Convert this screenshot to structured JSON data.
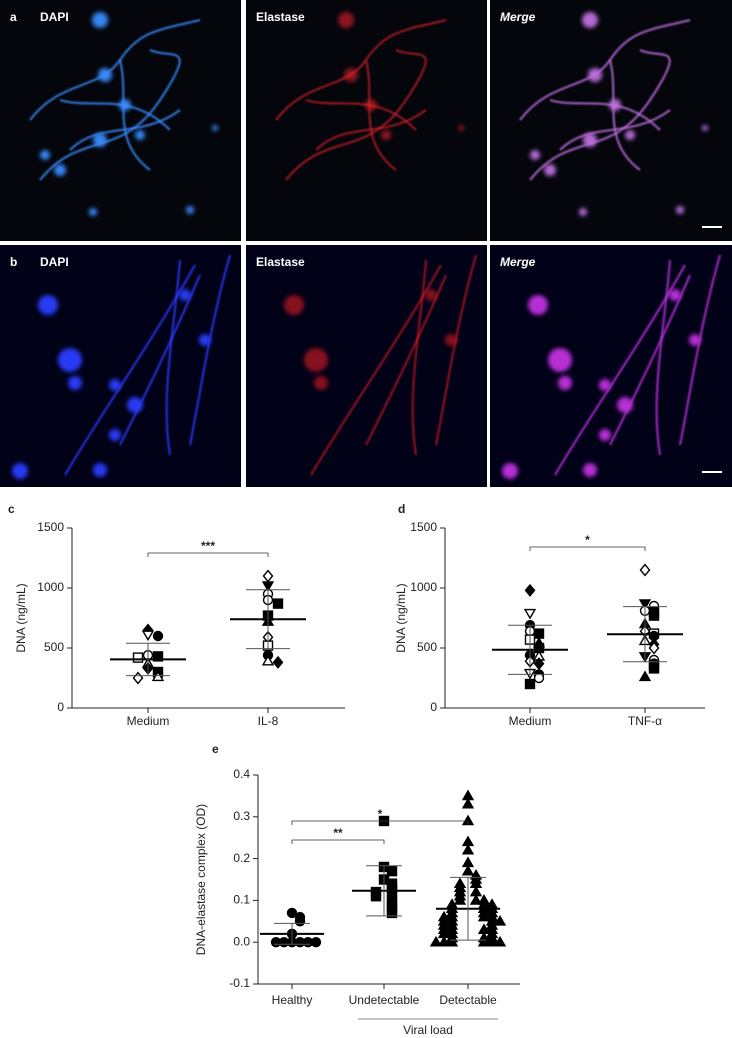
{
  "panels": [
    {
      "label": "a",
      "channels": [
        "DAPI",
        "Elastase",
        "Merge"
      ]
    },
    {
      "label": "b",
      "channels": [
        "DAPI",
        "Elastase",
        "Merge"
      ]
    }
  ],
  "chart_data": [
    {
      "type": "dot",
      "panel_label": "c",
      "y_label": "DNA (ng/mL)",
      "categories": [
        "Medium",
        "IL-8"
      ],
      "values": [
        [
          650,
          610,
          600,
          440,
          430,
          420,
          370,
          330,
          300,
          270,
          260,
          250
        ],
        [
          1100,
          1020,
          950,
          900,
          870,
          770,
          720,
          590,
          520,
          440,
          390,
          380
        ]
      ],
      "means": [
        405,
        740
      ],
      "sd": [
        135,
        245
      ],
      "ylim": [
        0,
        1500
      ],
      "yticks": [
        0,
        500,
        1000,
        1500
      ],
      "significance": [
        "***"
      ]
    },
    {
      "type": "dot",
      "panel_label": "d",
      "y_label": "DNA (ng/mL)",
      "categories": [
        "Medium",
        "TNF-α"
      ],
      "values": [
        [
          980,
          790,
          690,
          640,
          620,
          570,
          540,
          520,
          500,
          440,
          430,
          390,
          370,
          290,
          280,
          250,
          200
        ],
        [
          1150,
          870,
          850,
          810,
          800,
          770,
          700,
          640,
          620,
          600,
          560,
          530,
          500,
          430,
          400,
          370,
          360,
          330,
          260
        ]
      ],
      "means": [
        485,
        615
      ],
      "sd": [
        205,
        230
      ],
      "ylim": [
        0,
        1500
      ],
      "yticks": [
        0,
        500,
        1000,
        1500
      ],
      "significance": [
        "*"
      ]
    },
    {
      "type": "dot",
      "panel_label": "e",
      "y_label": "DNA-elastase complex (OD)",
      "categories": [
        "Healthy",
        "Undetectable",
        "Detectable"
      ],
      "x_group_label": "Viral load",
      "values": [
        [
          0.07,
          0.06,
          0.05,
          0.02,
          0.0,
          0.0,
          0.0,
          0.0,
          0.0,
          0.0
        ],
        [
          0.29,
          0.18,
          0.17,
          0.15,
          0.14,
          0.13,
          0.12,
          0.12,
          0.11,
          0.1,
          0.09,
          0.08,
          0.07
        ],
        [
          0.35,
          0.33,
          0.29,
          0.24,
          0.22,
          0.19,
          0.17,
          0.16,
          0.15,
          0.14,
          0.14,
          0.13,
          0.12,
          0.12,
          0.11,
          0.1,
          0.1,
          0.1,
          0.09,
          0.09,
          0.09,
          0.08,
          0.08,
          0.08,
          0.07,
          0.07,
          0.07,
          0.06,
          0.06,
          0.06,
          0.06,
          0.05,
          0.05,
          0.05,
          0.05,
          0.04,
          0.04,
          0.04,
          0.03,
          0.03,
          0.03,
          0.03,
          0.02,
          0.02,
          0.02,
          0.01,
          0.01,
          0.01,
          0.0,
          0.0,
          0.0,
          0.0,
          0.0,
          0.0
        ]
      ],
      "means": [
        0.02,
        0.123,
        0.08
      ],
      "sd": [
        0.025,
        0.06,
        0.075
      ],
      "ylim": [
        -0.1,
        0.4
      ],
      "yticks": [
        -0.1,
        {
          "value": 0,
          "label": "0.0"
        },
        0.1,
        0.2,
        0.3,
        0.4
      ],
      "significance": [
        "**",
        "*"
      ]
    }
  ]
}
